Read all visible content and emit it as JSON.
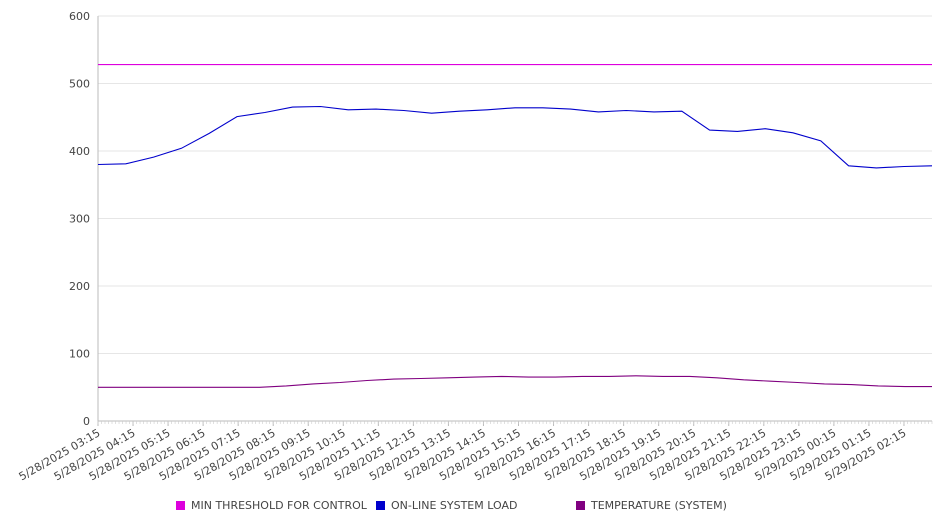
{
  "chart_data": {
    "type": "line",
    "title": "",
    "xlabel": "",
    "ylabel": "",
    "ylim": [
      0,
      600
    ],
    "yticks": [
      "0",
      "100",
      "200",
      "300",
      "400",
      "500",
      "600"
    ],
    "x_tick_labels": [
      "5/28/2025 03:15",
      "5/28/2025 04:15",
      "5/28/2025 05:15",
      "5/28/2025 06:15",
      "5/28/2025 07:15",
      "5/28/2025 08:15",
      "5/28/2025 09:15",
      "5/28/2025 10:15",
      "5/28/2025 11:15",
      "5/28/2025 12:15",
      "5/28/2025 13:15",
      "5/28/2025 14:15",
      "5/28/2025 15:15",
      "5/28/2025 16:15",
      "5/28/2025 17:15",
      "5/28/2025 18:15",
      "5/28/2025 19:15",
      "5/28/2025 20:15",
      "5/28/2025 21:15",
      "5/28/2025 22:15",
      "5/28/2025 23:15",
      "5/29/2025 00:15",
      "5/29/2025 01:15",
      "5/29/2025 02:15"
    ],
    "grid": true,
    "legend_position": "bottom",
    "series": [
      {
        "name": "MIN THRESHOLD FOR CONTROL",
        "color": "#dd00dd",
        "values": [
          528,
          528,
          528,
          528,
          528,
          528,
          528,
          528,
          528,
          528,
          528,
          528,
          528,
          528,
          528,
          528,
          528,
          528,
          528,
          528,
          528,
          528,
          528,
          528,
          528
        ]
      },
      {
        "name": "ON-LINE SYSTEM LOAD",
        "color": "#0000cc",
        "values": [
          380,
          381,
          391,
          404,
          426,
          451,
          457,
          465,
          466,
          461,
          462,
          460,
          456,
          459,
          461,
          464,
          464,
          462,
          458,
          460,
          458,
          459,
          431,
          429,
          433,
          427,
          415,
          378,
          375,
          377,
          378
        ]
      },
      {
        "name": "TEMPERATURE (SYSTEM)",
        "color": "#800080",
        "values": [
          50,
          50,
          50,
          50,
          50,
          50,
          50,
          52,
          55,
          57,
          60,
          62,
          63,
          64,
          65,
          66,
          65,
          65,
          66,
          66,
          67,
          66,
          66,
          64,
          61,
          59,
          57,
          55,
          54,
          52,
          51,
          51
        ]
      }
    ]
  }
}
